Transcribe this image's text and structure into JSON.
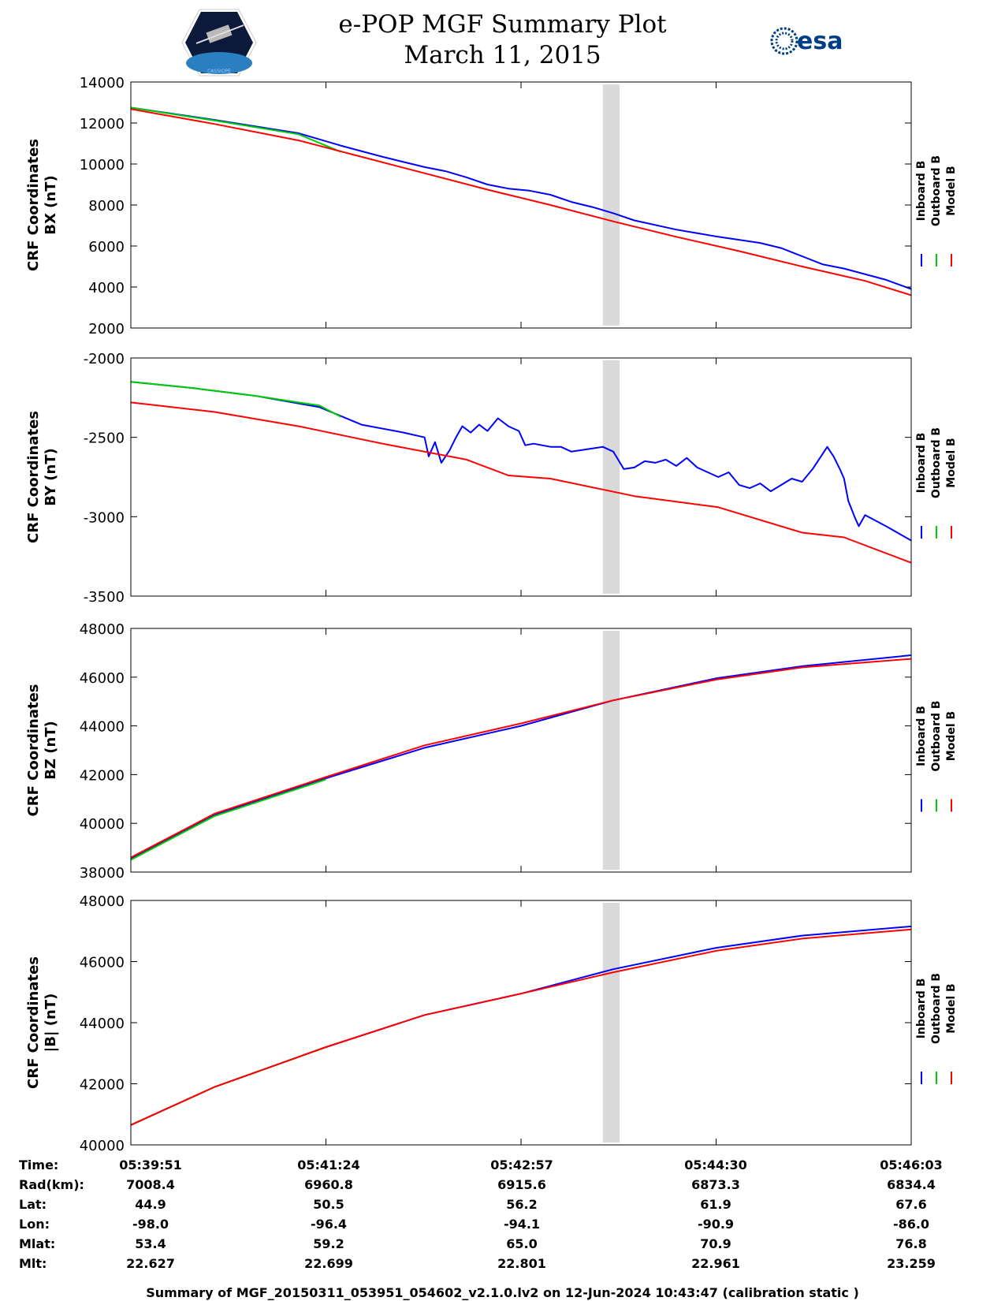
{
  "header": {
    "title_line1": "e-POP MGF Summary Plot",
    "title_line2": "March 11, 2015",
    "logo_left_text": "CASSIOPE",
    "logo_right_text": "esa"
  },
  "legend": {
    "entries": [
      {
        "label": "Inboard B",
        "color": "#0000ff"
      },
      {
        "label": "Outboard B",
        "color": "#00cc00"
      },
      {
        "label": "Model B",
        "color": "#ff0000"
      }
    ]
  },
  "chart_data": [
    {
      "type": "line",
      "ylabel_line1": "CRF Coordinates",
      "ylabel_line2": "BX (nT)",
      "ylim": [
        2000,
        14000
      ],
      "yticks": [
        2000,
        4000,
        6000,
        8000,
        10000,
        12000,
        14000
      ],
      "xlim": [
        0,
        372
      ],
      "xticks": [
        0,
        93,
        186,
        279,
        372
      ],
      "gap": [
        225,
        233
      ],
      "series": [
        {
          "name": "Inboard B",
          "color": "#0000ff",
          "points": [
            [
              0,
              12750
            ],
            [
              40,
              12150
            ],
            [
              80,
              11500
            ],
            [
              100,
              10900
            ],
            [
              120,
              10350
            ],
            [
              140,
              9850
            ],
            [
              150,
              9650
            ],
            [
              160,
              9350
            ],
            [
              170,
              9000
            ],
            [
              180,
              8800
            ],
            [
              190,
              8700
            ],
            [
              200,
              8500
            ],
            [
              210,
              8150
            ],
            [
              220,
              7900
            ],
            [
              230,
              7600
            ],
            [
              240,
              7250
            ],
            [
              260,
              6800
            ],
            [
              280,
              6450
            ],
            [
              300,
              6150
            ],
            [
              310,
              5900
            ],
            [
              320,
              5500
            ],
            [
              330,
              5100
            ],
            [
              340,
              4900
            ],
            [
              360,
              4350
            ],
            [
              372,
              3900
            ]
          ]
        },
        {
          "name": "Outboard B",
          "color": "#00cc00",
          "points": [
            [
              0,
              12750
            ],
            [
              40,
              12120
            ],
            [
              80,
              11450
            ],
            [
              100,
              10600
            ]
          ]
        },
        {
          "name": "Model B",
          "color": "#ff0000",
          "points": [
            [
              0,
              12680
            ],
            [
              40,
              11950
            ],
            [
              80,
              11150
            ],
            [
              110,
              10350
            ],
            [
              140,
              9550
            ],
            [
              170,
              8750
            ],
            [
              200,
              8000
            ],
            [
              230,
              7200
            ],
            [
              260,
              6450
            ],
            [
              290,
              5750
            ],
            [
              320,
              5000
            ],
            [
              350,
              4300
            ],
            [
              372,
              3600
            ]
          ]
        }
      ]
    },
    {
      "type": "line",
      "ylabel_line1": "CRF Coordinates",
      "ylabel_line2": "BY (nT)",
      "ylim": [
        -3500,
        -2000
      ],
      "yticks": [
        -3500,
        -3000,
        -2500,
        -2000
      ],
      "xlim": [
        0,
        372
      ],
      "xticks": [
        0,
        93,
        186,
        279,
        372
      ],
      "gap": [
        225,
        233
      ],
      "series": [
        {
          "name": "Inboard B",
          "color": "#0000ff",
          "points": [
            [
              0,
              -2150
            ],
            [
              30,
              -2190
            ],
            [
              60,
              -2240
            ],
            [
              90,
              -2310
            ],
            [
              110,
              -2420
            ],
            [
              130,
              -2470
            ],
            [
              140,
              -2500
            ],
            [
              142,
              -2620
            ],
            [
              145,
              -2530
            ],
            [
              148,
              -2660
            ],
            [
              152,
              -2580
            ],
            [
              155,
              -2500
            ],
            [
              158,
              -2430
            ],
            [
              162,
              -2470
            ],
            [
              166,
              -2420
            ],
            [
              170,
              -2460
            ],
            [
              175,
              -2380
            ],
            [
              180,
              -2430
            ],
            [
              185,
              -2460
            ],
            [
              188,
              -2550
            ],
            [
              192,
              -2540
            ],
            [
              200,
              -2560
            ],
            [
              205,
              -2560
            ],
            [
              210,
              -2590
            ],
            [
              220,
              -2570
            ],
            [
              225,
              -2560
            ],
            [
              230,
              -2590
            ],
            [
              235,
              -2700
            ],
            [
              240,
              -2690
            ],
            [
              245,
              -2650
            ],
            [
              250,
              -2660
            ],
            [
              255,
              -2640
            ],
            [
              260,
              -2680
            ],
            [
              265,
              -2630
            ],
            [
              270,
              -2690
            ],
            [
              280,
              -2750
            ],
            [
              285,
              -2720
            ],
            [
              290,
              -2800
            ],
            [
              295,
              -2820
            ],
            [
              300,
              -2790
            ],
            [
              305,
              -2840
            ],
            [
              310,
              -2800
            ],
            [
              315,
              -2760
            ],
            [
              320,
              -2780
            ],
            [
              325,
              -2700
            ],
            [
              330,
              -2600
            ],
            [
              332,
              -2560
            ],
            [
              335,
              -2620
            ],
            [
              338,
              -2700
            ],
            [
              340,
              -2760
            ],
            [
              342,
              -2900
            ],
            [
              345,
              -3000
            ],
            [
              347,
              -3060
            ],
            [
              350,
              -2990
            ],
            [
              360,
              -3060
            ],
            [
              372,
              -3150
            ]
          ]
        },
        {
          "name": "Outboard B",
          "color": "#00cc00",
          "points": [
            [
              0,
              -2150
            ],
            [
              30,
              -2190
            ],
            [
              60,
              -2240
            ],
            [
              90,
              -2300
            ],
            [
              100,
              -2370
            ]
          ]
        },
        {
          "name": "Model B",
          "color": "#ff0000",
          "points": [
            [
              0,
              -2280
            ],
            [
              40,
              -2340
            ],
            [
              80,
              -2430
            ],
            [
              120,
              -2540
            ],
            [
              160,
              -2640
            ],
            [
              180,
              -2740
            ],
            [
              200,
              -2760
            ],
            [
              240,
              -2870
            ],
            [
              280,
              -2940
            ],
            [
              320,
              -3100
            ],
            [
              340,
              -3130
            ],
            [
              372,
              -3290
            ]
          ]
        }
      ]
    },
    {
      "type": "line",
      "ylabel_line1": "CRF Coordinates",
      "ylabel_line2": "BZ (nT)",
      "ylim": [
        38000,
        48000
      ],
      "yticks": [
        38000,
        40000,
        42000,
        44000,
        46000,
        48000
      ],
      "xlim": [
        0,
        372
      ],
      "xticks": [
        0,
        93,
        186,
        279,
        372
      ],
      "gap": [
        225,
        233
      ],
      "series": [
        {
          "name": "Inboard B",
          "color": "#0000ff",
          "points": [
            [
              0,
              38550
            ],
            [
              40,
              40350
            ],
            [
              93,
              41850
            ],
            [
              140,
              43100
            ],
            [
              186,
              44000
            ],
            [
              230,
              45050
            ],
            [
              279,
              45950
            ],
            [
              320,
              46450
            ],
            [
              372,
              46900
            ]
          ]
        },
        {
          "name": "Outboard B",
          "color": "#00cc00",
          "points": [
            [
              0,
              38500
            ],
            [
              40,
              40300
            ],
            [
              93,
              41800
            ]
          ]
        },
        {
          "name": "Model B",
          "color": "#ff0000",
          "points": [
            [
              0,
              38600
            ],
            [
              40,
              40400
            ],
            [
              93,
              41900
            ],
            [
              140,
              43200
            ],
            [
              186,
              44100
            ],
            [
              230,
              45050
            ],
            [
              279,
              45900
            ],
            [
              320,
              46400
            ],
            [
              372,
              46750
            ]
          ]
        }
      ]
    },
    {
      "type": "line",
      "ylabel_line1": "CRF Coordinates",
      "ylabel_line2": "|B| (nT)",
      "ylim": [
        40000,
        48000
      ],
      "yticks": [
        40000,
        42000,
        44000,
        46000,
        48000
      ],
      "xlim": [
        0,
        372
      ],
      "xticks": [
        0,
        93,
        186,
        279,
        372
      ],
      "gap": [
        225,
        233
      ],
      "series": [
        {
          "name": "Inboard B",
          "color": "#0000ff",
          "points": [
            [
              0,
              40650
            ],
            [
              40,
              41900
            ],
            [
              93,
              43200
            ],
            [
              140,
              44250
            ],
            [
              186,
              44950
            ],
            [
              230,
              45750
            ],
            [
              279,
              46450
            ],
            [
              320,
              46850
            ],
            [
              372,
              47150
            ]
          ]
        },
        {
          "name": "Outboard B",
          "color": "#00cc00",
          "points": [
            [
              0,
              40650
            ],
            [
              40,
              41900
            ],
            [
              93,
              43200
            ]
          ]
        },
        {
          "name": "Model B",
          "color": "#ff0000",
          "points": [
            [
              0,
              40650
            ],
            [
              40,
              41900
            ],
            [
              93,
              43200
            ],
            [
              140,
              44250
            ],
            [
              186,
              44950
            ],
            [
              230,
              45650
            ],
            [
              279,
              46350
            ],
            [
              320,
              46750
            ],
            [
              372,
              47050
            ]
          ]
        }
      ]
    }
  ],
  "ephemeris": {
    "labels": [
      "Time:",
      "Rad(km):",
      "Lat:",
      "Lon:",
      "Mlat:",
      "Mlt:"
    ],
    "columns": [
      [
        "05:39:51",
        "7008.4",
        "44.9",
        "-98.0",
        "53.4",
        "22.627"
      ],
      [
        "05:41:24",
        "6960.8",
        "50.5",
        "-96.4",
        "59.2",
        "22.699"
      ],
      [
        "05:42:57",
        "6915.6",
        "56.2",
        "-94.1",
        "65.0",
        "22.801"
      ],
      [
        "05:44:30",
        "6873.3",
        "61.9",
        "-90.9",
        "70.9",
        "22.961"
      ],
      [
        "05:46:03",
        "6834.4",
        "67.6",
        "-86.0",
        "76.8",
        "23.259"
      ]
    ]
  },
  "footer": "Summary of MGF_20150311_053951_054602_v2.1.0.lv2 on 12-Jun-2024 10:43:47 (calibration static )"
}
